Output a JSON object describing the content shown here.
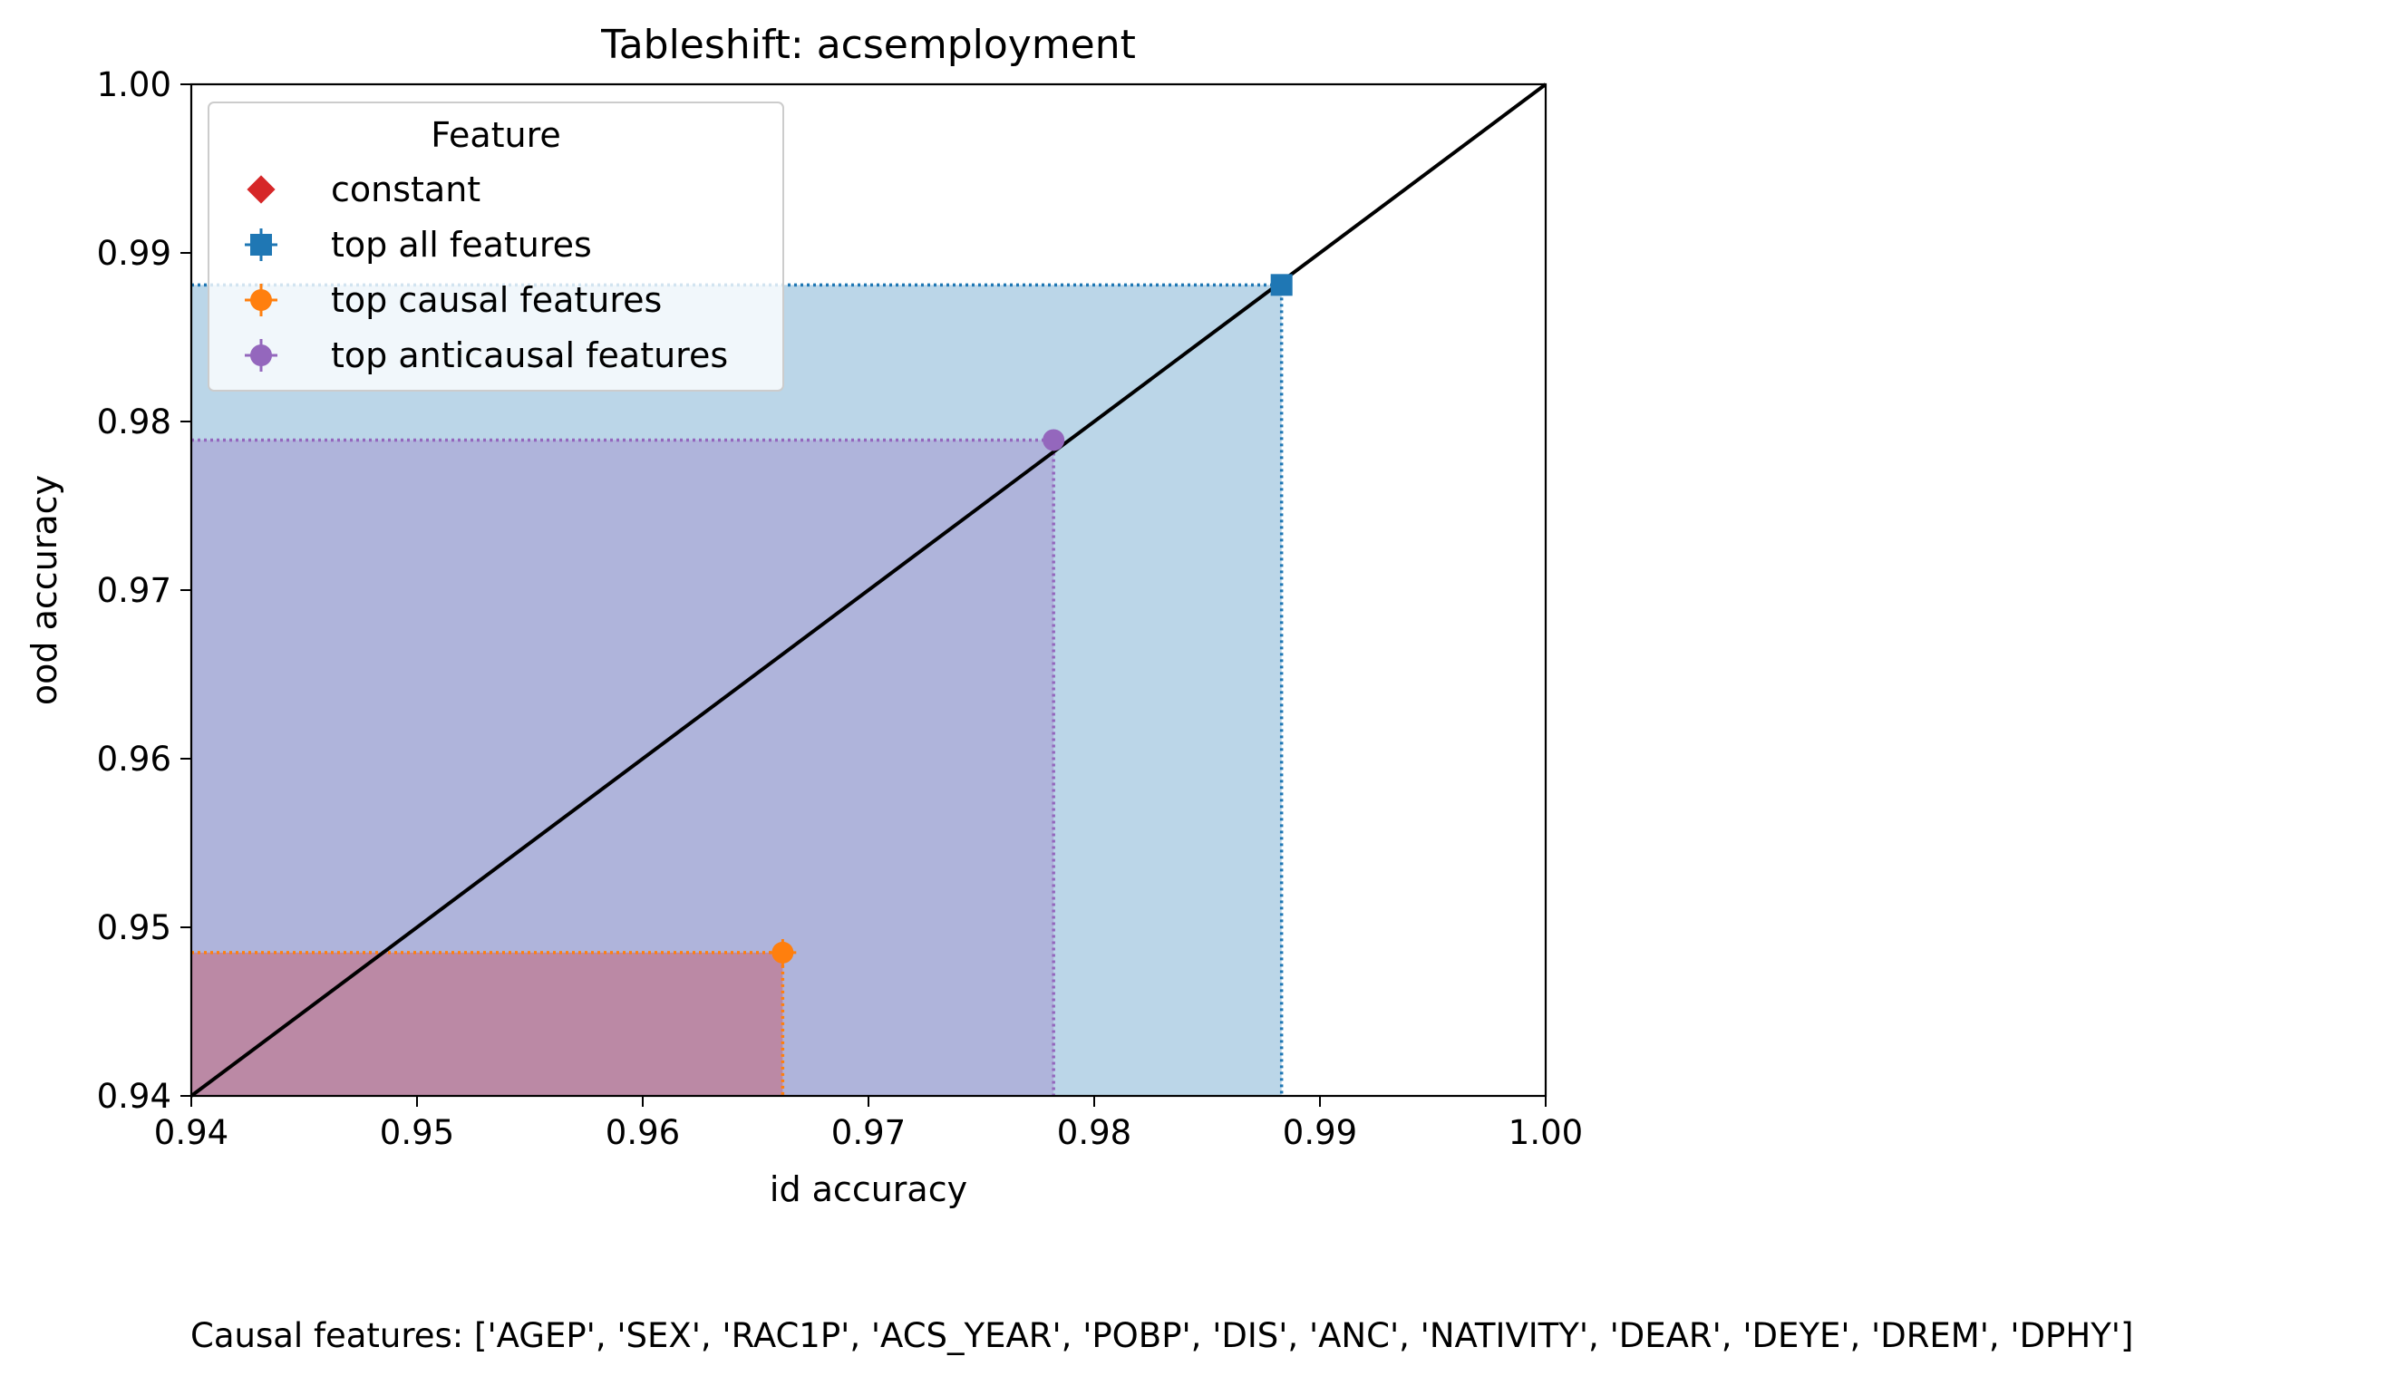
{
  "chart_data": {
    "type": "scatter",
    "title": "Tableshift: acsemployment",
    "xlabel": "id accuracy",
    "ylabel": "ood accuracy",
    "xlim": [
      0.94,
      1.0
    ],
    "ylim": [
      0.94,
      1.0
    ],
    "xticks": [
      "0.94",
      "0.95",
      "0.96",
      "0.97",
      "0.98",
      "0.99",
      "1.00"
    ],
    "yticks": [
      "0.94",
      "0.95",
      "0.96",
      "0.97",
      "0.98",
      "0.99",
      "1.00"
    ],
    "grid": false,
    "diagonal": {
      "from": [
        0.94,
        0.94
      ],
      "to": [
        1.0,
        1.0
      ],
      "color": "#000000"
    },
    "legend": {
      "title": "Feature",
      "position": "upper-left",
      "entries": [
        "constant",
        "top all features",
        "top causal features",
        "top anticausal features"
      ]
    },
    "series": [
      {
        "name": "constant",
        "marker": "diamond",
        "color": "#d62728",
        "points": []
      },
      {
        "name": "top all features",
        "marker": "square",
        "color": "#1f77b4",
        "points": [
          {
            "x": 0.9883,
            "y": 0.9881,
            "xerr": 0.0003,
            "yerr": 0.0002
          }
        ]
      },
      {
        "name": "top causal features",
        "marker": "circle",
        "color": "#ff7f0e",
        "points": [
          {
            "x": 0.9662,
            "y": 0.9485,
            "xerr": 0.0006,
            "yerr": 0.0008
          }
        ]
      },
      {
        "name": "top anticausal features",
        "marker": "circle",
        "color": "#9467bd",
        "points": [
          {
            "x": 0.9782,
            "y": 0.9789,
            "xerr": 0.0003,
            "yerr": 0.0003
          }
        ]
      }
    ],
    "shaded_regions": [
      {
        "series": "top all features",
        "x": 0.9883,
        "y": 0.9881,
        "color": "#1f77b4",
        "alpha": 0.3
      },
      {
        "series": "top anticausal features",
        "x": 0.9782,
        "y": 0.9789,
        "color": "#9467bd",
        "alpha": 0.3
      },
      {
        "series": "top causal features",
        "x": 0.9662,
        "y": 0.9485,
        "color": "#d62728",
        "alpha": 0.3
      }
    ],
    "annotation": "Causal features: ['AGEP', 'SEX', 'RAC1P', 'ACS_YEAR', 'POBP', 'DIS', 'ANC', 'NATIVITY', 'DEAR', 'DEYE', 'DREM', 'DPHY']"
  }
}
